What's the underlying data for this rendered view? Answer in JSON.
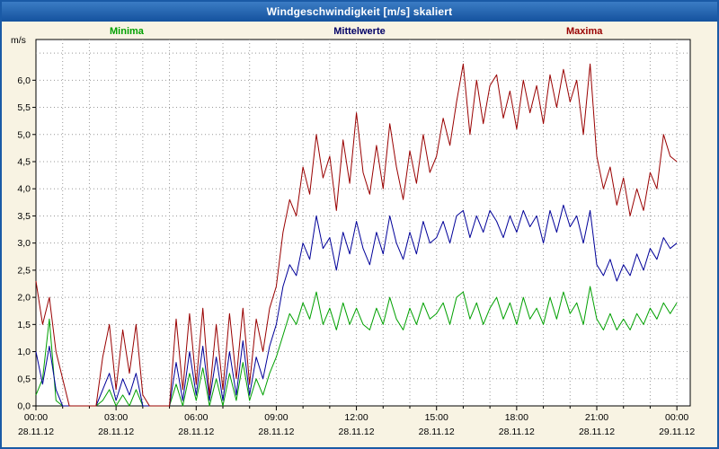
{
  "window": {
    "title": "Windgeschwindigkeit [m/s] skaliert"
  },
  "chart_data": {
    "type": "line",
    "title": "Windgeschwindigkeit [m/s] skaliert",
    "ylabel": "m/s",
    "xlabel": "",
    "ylim": [
      0,
      6.75
    ],
    "xlim_hours": [
      0,
      24.5
    ],
    "grid": "dotted, hourly vertical and 0.5 m/s horizontal",
    "legend_position": "top",
    "y_ticks": [
      {
        "value": 0.0,
        "label": "0,0"
      },
      {
        "value": 0.5,
        "label": "0,5"
      },
      {
        "value": 1.0,
        "label": "1,0"
      },
      {
        "value": 1.5,
        "label": "1,5"
      },
      {
        "value": 2.0,
        "label": "2,0"
      },
      {
        "value": 2.5,
        "label": "2,5"
      },
      {
        "value": 3.0,
        "label": "3,0"
      },
      {
        "value": 3.5,
        "label": "3,5"
      },
      {
        "value": 4.0,
        "label": "4,0"
      },
      {
        "value": 4.5,
        "label": "4,5"
      },
      {
        "value": 5.0,
        "label": "5,0"
      },
      {
        "value": 5.5,
        "label": "5,5"
      },
      {
        "value": 6.0,
        "label": "6,0"
      }
    ],
    "x_ticks": [
      {
        "hour": 0,
        "label": "00:00",
        "date": "28.11.12"
      },
      {
        "hour": 3,
        "label": "03:00",
        "date": "28.11.12"
      },
      {
        "hour": 6,
        "label": "06:00",
        "date": "28.11.12"
      },
      {
        "hour": 9,
        "label": "09:00",
        "date": "28.11.12"
      },
      {
        "hour": 12,
        "label": "12:00",
        "date": "28.11.12"
      },
      {
        "hour": 15,
        "label": "15:00",
        "date": "28.11.12"
      },
      {
        "hour": 18,
        "label": "18:00",
        "date": "28.11.12"
      },
      {
        "hour": 21,
        "label": "21:00",
        "date": "28.11.12"
      },
      {
        "hour": 24,
        "label": "00:00",
        "date": "29.11.12"
      }
    ],
    "sample_interval_hours": 0.25,
    "series": [
      {
        "name": "Minima",
        "color": "#00a000",
        "values": [
          0.2,
          0.5,
          1.6,
          0.1,
          0.0,
          0.0,
          0.0,
          0.0,
          0.0,
          0.0,
          0.1,
          0.3,
          0.0,
          0.2,
          0.0,
          0.3,
          0.0,
          0.0,
          0.0,
          0.0,
          0.0,
          0.4,
          0.0,
          0.6,
          0.1,
          0.7,
          0.0,
          0.5,
          0.0,
          0.6,
          0.1,
          0.8,
          0.1,
          0.5,
          0.2,
          0.6,
          0.9,
          1.3,
          1.7,
          1.5,
          1.9,
          1.6,
          2.1,
          1.5,
          1.8,
          1.4,
          1.9,
          1.5,
          1.8,
          1.5,
          1.4,
          1.8,
          1.5,
          2.0,
          1.6,
          1.4,
          1.8,
          1.5,
          1.9,
          1.6,
          1.7,
          1.9,
          1.5,
          2.0,
          2.1,
          1.6,
          1.9,
          1.5,
          1.8,
          2.0,
          1.6,
          1.9,
          1.5,
          2.0,
          1.6,
          1.8,
          1.5,
          2.0,
          1.6,
          2.1,
          1.7,
          1.9,
          1.5,
          2.2,
          1.6,
          1.4,
          1.7,
          1.4,
          1.6,
          1.4,
          1.7,
          1.5,
          1.8,
          1.6,
          1.9,
          1.7,
          1.9
        ]
      },
      {
        "name": "Mittelwerte",
        "color": "#000099",
        "values": [
          1.0,
          0.4,
          1.1,
          0.3,
          0.0,
          0.0,
          0.0,
          0.0,
          0.0,
          0.0,
          0.3,
          0.6,
          0.1,
          0.5,
          0.2,
          0.6,
          0.0,
          0.0,
          0.0,
          0.0,
          0.0,
          0.8,
          0.1,
          1.0,
          0.2,
          1.1,
          0.1,
          0.9,
          0.1,
          1.0,
          0.2,
          1.2,
          0.2,
          0.9,
          0.5,
          1.1,
          1.5,
          2.2,
          2.6,
          2.4,
          3.0,
          2.7,
          3.5,
          2.9,
          3.1,
          2.5,
          3.2,
          2.8,
          3.4,
          2.9,
          2.6,
          3.2,
          2.8,
          3.5,
          3.0,
          2.7,
          3.2,
          2.8,
          3.4,
          3.0,
          3.1,
          3.4,
          3.0,
          3.5,
          3.6,
          3.1,
          3.5,
          3.2,
          3.6,
          3.4,
          3.1,
          3.5,
          3.2,
          3.6,
          3.3,
          3.5,
          3.0,
          3.6,
          3.2,
          3.7,
          3.3,
          3.5,
          3.0,
          3.6,
          2.6,
          2.4,
          2.7,
          2.3,
          2.6,
          2.4,
          2.8,
          2.5,
          2.9,
          2.7,
          3.1,
          2.9,
          3.0
        ]
      },
      {
        "name": "Maxima",
        "color": "#990000",
        "values": [
          2.3,
          1.5,
          2.0,
          1.0,
          0.5,
          0.0,
          0.0,
          0.0,
          0.0,
          0.0,
          0.9,
          1.5,
          0.3,
          1.4,
          0.6,
          1.5,
          0.2,
          0.0,
          0.0,
          0.0,
          0.0,
          1.6,
          0.3,
          1.7,
          0.4,
          1.8,
          0.2,
          1.5,
          0.3,
          1.7,
          0.5,
          1.8,
          0.4,
          1.6,
          1.0,
          1.8,
          2.2,
          3.2,
          3.8,
          3.5,
          4.4,
          3.9,
          5.0,
          4.2,
          4.6,
          3.6,
          4.9,
          4.1,
          5.4,
          4.3,
          3.9,
          4.8,
          4.0,
          5.2,
          4.4,
          3.8,
          4.7,
          4.1,
          5.0,
          4.3,
          4.6,
          5.3,
          4.8,
          5.6,
          6.3,
          5.0,
          6.0,
          5.2,
          5.9,
          6.1,
          5.3,
          5.8,
          5.1,
          6.0,
          5.4,
          5.9,
          5.2,
          6.1,
          5.5,
          6.2,
          5.6,
          6.0,
          5.0,
          6.3,
          4.6,
          4.0,
          4.4,
          3.7,
          4.2,
          3.5,
          4.0,
          3.6,
          4.3,
          4.0,
          5.0,
          4.6,
          4.5
        ]
      }
    ]
  }
}
